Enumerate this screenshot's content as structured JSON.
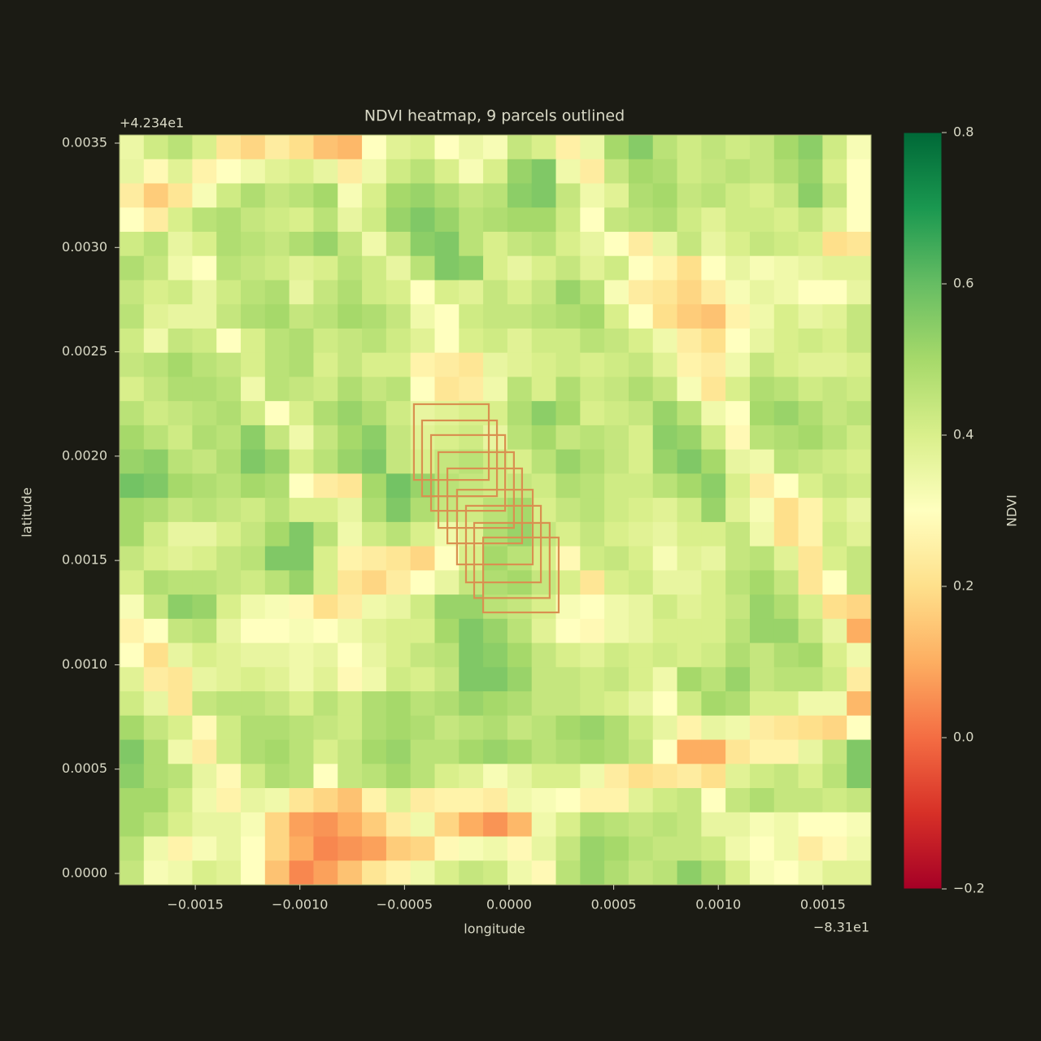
{
  "chart_data": {
    "type": "heatmap",
    "title": "NDVI heatmap, 9 parcels outlined",
    "x_label": "longitude",
    "y_label": "latitude",
    "x_offset": "−8.31e1",
    "y_offset": "+4.234e1",
    "colorbar_label": "NDVI",
    "xlim": [
      -0.001862,
      0.00173
    ],
    "ylim": [
      -5.46e-05,
      0.003539
    ],
    "xticks": [
      {
        "value": -0.0015,
        "label": "−0.0015"
      },
      {
        "value": -0.001,
        "label": "−0.0010"
      },
      {
        "value": -0.0005,
        "label": "−0.0005"
      },
      {
        "value": 0,
        "label": "0.0000"
      },
      {
        "value": 0.0005,
        "label": "0.0005"
      },
      {
        "value": 0.001,
        "label": "0.0010"
      },
      {
        "value": 0.0015,
        "label": "0.0015"
      }
    ],
    "yticks": [
      {
        "value": 0,
        "label": "0.0000"
      },
      {
        "value": 0.0005,
        "label": "0.0005"
      },
      {
        "value": 0.001,
        "label": "0.0010"
      },
      {
        "value": 0.0015,
        "label": "0.0015"
      },
      {
        "value": 0.002,
        "label": "0.0020"
      },
      {
        "value": 0.0025,
        "label": "0.0025"
      },
      {
        "value": 0.003,
        "label": "0.0030"
      },
      {
        "value": 0.0035,
        "label": "0.0035"
      }
    ],
    "clim": [
      -0.2,
      0.8
    ],
    "cticks": [
      {
        "value": -0.2,
        "label": "−0.2"
      },
      {
        "value": 0,
        "label": "0.0"
      },
      0.2,
      0.4,
      0.6,
      0.8
    ],
    "colormap": [
      "#a50026",
      "#d73027",
      "#f46d43",
      "#fdae61",
      "#fee08b",
      "#ffffbf",
      "#d9ef8b",
      "#a6d96a",
      "#66bd63",
      "#1a9850",
      "#006837"
    ],
    "parcel_color": "#d99050",
    "parcels": [
      {
        "lon": [
          -0.000455,
          -9.7e-05
        ],
        "lat": [
          0.001886,
          0.002249
        ]
      },
      {
        "lon": [
          -0.000416,
          -5.8e-05
        ],
        "lat": [
          0.001808,
          0.002171
        ]
      },
      {
        "lon": [
          -0.000373,
          -1.9e-05
        ],
        "lat": [
          0.001738,
          0.002101
        ]
      },
      {
        "lon": [
          -0.000338,
          2.3e-05
        ],
        "lat": [
          0.001656,
          0.002019
        ]
      },
      {
        "lon": [
          -0.000295,
          6.2e-05
        ],
        "lat": [
          0.001582,
          0.001941
        ]
      },
      {
        "lon": [
          -0.000249,
          0.000113
        ],
        "lat": [
          0.001481,
          0.001839
        ]
      },
      {
        "lon": [
          -0.000206,
          0.000152
        ],
        "lat": [
          0.001395,
          0.001762
        ]
      },
      {
        "lon": [
          -0.000167,
          0.000194
        ],
        "lat": [
          0.00132,
          0.00168
        ]
      },
      {
        "lon": [
          -0.000124,
          0.000237
        ],
        "lat": [
          0.001251,
          0.00161
        ]
      }
    ],
    "z": [
      [
        0.35,
        0.42,
        0.46,
        0.4,
        0.22,
        0.18,
        0.24,
        0.2,
        0.14,
        0.12,
        0.3,
        0.38,
        0.4,
        0.3,
        0.35,
        0.32,
        0.44,
        0.4,
        0.25,
        0.35,
        0.5,
        0.55,
        0.46,
        0.42,
        0.45,
        0.42,
        0.44,
        0.5,
        0.54,
        0.42,
        0.32
      ],
      [
        0.36,
        0.28,
        0.38,
        0.26,
        0.3,
        0.34,
        0.38,
        0.4,
        0.36,
        0.24,
        0.34,
        0.42,
        0.46,
        0.4,
        0.32,
        0.4,
        0.52,
        0.56,
        0.34,
        0.24,
        0.44,
        0.5,
        0.48,
        0.42,
        0.44,
        0.46,
        0.44,
        0.48,
        0.52,
        0.4,
        0.3
      ],
      [
        0.24,
        0.16,
        0.22,
        0.32,
        0.42,
        0.48,
        0.44,
        0.46,
        0.5,
        0.32,
        0.4,
        0.5,
        0.52,
        0.48,
        0.44,
        0.46,
        0.54,
        0.56,
        0.44,
        0.34,
        0.38,
        0.48,
        0.5,
        0.44,
        0.46,
        0.42,
        0.4,
        0.44,
        0.54,
        0.44,
        0.3
      ],
      [
        0.3,
        0.24,
        0.4,
        0.46,
        0.48,
        0.44,
        0.42,
        0.4,
        0.46,
        0.36,
        0.42,
        0.52,
        0.56,
        0.52,
        0.46,
        0.48,
        0.5,
        0.5,
        0.42,
        0.3,
        0.44,
        0.46,
        0.48,
        0.42,
        0.38,
        0.42,
        0.42,
        0.4,
        0.44,
        0.38,
        0.3
      ],
      [
        0.42,
        0.46,
        0.36,
        0.4,
        0.48,
        0.46,
        0.44,
        0.48,
        0.52,
        0.44,
        0.34,
        0.44,
        0.54,
        0.56,
        0.46,
        0.4,
        0.44,
        0.46,
        0.4,
        0.36,
        0.3,
        0.24,
        0.36,
        0.44,
        0.36,
        0.4,
        0.44,
        0.42,
        0.4,
        0.2,
        0.22
      ],
      [
        0.48,
        0.44,
        0.34,
        0.3,
        0.46,
        0.44,
        0.42,
        0.38,
        0.4,
        0.46,
        0.42,
        0.36,
        0.46,
        0.56,
        0.54,
        0.4,
        0.36,
        0.4,
        0.44,
        0.38,
        0.42,
        0.3,
        0.26,
        0.2,
        0.3,
        0.36,
        0.32,
        0.34,
        0.36,
        0.38,
        0.38
      ],
      [
        0.44,
        0.4,
        0.42,
        0.36,
        0.42,
        0.46,
        0.48,
        0.36,
        0.44,
        0.48,
        0.42,
        0.4,
        0.3,
        0.4,
        0.38,
        0.44,
        0.4,
        0.44,
        0.52,
        0.46,
        0.32,
        0.24,
        0.22,
        0.18,
        0.24,
        0.32,
        0.36,
        0.34,
        0.3,
        0.3,
        0.36
      ],
      [
        0.46,
        0.38,
        0.36,
        0.36,
        0.44,
        0.48,
        0.5,
        0.44,
        0.46,
        0.5,
        0.48,
        0.44,
        0.34,
        0.3,
        0.42,
        0.44,
        0.44,
        0.46,
        0.48,
        0.5,
        0.4,
        0.3,
        0.2,
        0.16,
        0.14,
        0.26,
        0.34,
        0.4,
        0.36,
        0.38,
        0.44
      ],
      [
        0.42,
        0.34,
        0.44,
        0.42,
        0.3,
        0.4,
        0.46,
        0.48,
        0.42,
        0.44,
        0.46,
        0.42,
        0.38,
        0.3,
        0.4,
        0.42,
        0.38,
        0.42,
        0.42,
        0.46,
        0.44,
        0.4,
        0.34,
        0.24,
        0.2,
        0.3,
        0.36,
        0.4,
        0.42,
        0.4,
        0.44
      ],
      [
        0.44,
        0.46,
        0.5,
        0.46,
        0.44,
        0.4,
        0.46,
        0.48,
        0.4,
        0.44,
        0.4,
        0.4,
        0.26,
        0.24,
        0.22,
        0.36,
        0.38,
        0.4,
        0.42,
        0.4,
        0.42,
        0.44,
        0.38,
        0.26,
        0.24,
        0.34,
        0.44,
        0.4,
        0.38,
        0.38,
        0.4
      ],
      [
        0.4,
        0.44,
        0.48,
        0.48,
        0.46,
        0.34,
        0.46,
        0.44,
        0.42,
        0.48,
        0.44,
        0.46,
        0.3,
        0.22,
        0.24,
        0.34,
        0.46,
        0.4,
        0.48,
        0.42,
        0.44,
        0.48,
        0.44,
        0.32,
        0.22,
        0.4,
        0.48,
        0.46,
        0.42,
        0.44,
        0.42
      ],
      [
        0.46,
        0.42,
        0.44,
        0.46,
        0.48,
        0.42,
        0.3,
        0.4,
        0.48,
        0.52,
        0.48,
        0.42,
        0.36,
        0.38,
        0.4,
        0.4,
        0.48,
        0.54,
        0.5,
        0.4,
        0.42,
        0.44,
        0.52,
        0.46,
        0.34,
        0.3,
        0.5,
        0.52,
        0.48,
        0.44,
        0.46
      ],
      [
        0.5,
        0.46,
        0.42,
        0.48,
        0.46,
        0.54,
        0.44,
        0.34,
        0.44,
        0.5,
        0.54,
        0.44,
        0.38,
        0.4,
        0.42,
        0.36,
        0.46,
        0.5,
        0.44,
        0.46,
        0.44,
        0.4,
        0.54,
        0.52,
        0.42,
        0.28,
        0.46,
        0.48,
        0.5,
        0.46,
        0.42
      ],
      [
        0.52,
        0.54,
        0.46,
        0.44,
        0.48,
        0.56,
        0.52,
        0.4,
        0.46,
        0.52,
        0.56,
        0.44,
        0.4,
        0.44,
        0.46,
        0.42,
        0.4,
        0.46,
        0.52,
        0.48,
        0.44,
        0.4,
        0.52,
        0.56,
        0.5,
        0.36,
        0.34,
        0.46,
        0.44,
        0.42,
        0.4
      ],
      [
        0.58,
        0.56,
        0.5,
        0.48,
        0.46,
        0.5,
        0.48,
        0.3,
        0.24,
        0.22,
        0.5,
        0.58,
        0.52,
        0.46,
        0.44,
        0.42,
        0.44,
        0.42,
        0.48,
        0.46,
        0.42,
        0.42,
        0.46,
        0.5,
        0.54,
        0.4,
        0.24,
        0.3,
        0.4,
        0.44,
        0.42
      ],
      [
        0.5,
        0.48,
        0.44,
        0.46,
        0.44,
        0.42,
        0.46,
        0.4,
        0.4,
        0.36,
        0.48,
        0.56,
        0.48,
        0.44,
        0.42,
        0.46,
        0.5,
        0.4,
        0.44,
        0.46,
        0.42,
        0.4,
        0.38,
        0.42,
        0.52,
        0.38,
        0.32,
        0.2,
        0.26,
        0.4,
        0.36
      ],
      [
        0.5,
        0.42,
        0.36,
        0.36,
        0.4,
        0.44,
        0.5,
        0.56,
        0.46,
        0.34,
        0.42,
        0.46,
        0.4,
        0.34,
        0.38,
        0.48,
        0.52,
        0.44,
        0.4,
        0.44,
        0.4,
        0.38,
        0.36,
        0.4,
        0.4,
        0.44,
        0.34,
        0.2,
        0.26,
        0.42,
        0.38
      ],
      [
        0.44,
        0.4,
        0.38,
        0.4,
        0.44,
        0.46,
        0.56,
        0.56,
        0.4,
        0.26,
        0.24,
        0.22,
        0.18,
        0.3,
        0.4,
        0.5,
        0.46,
        0.4,
        0.28,
        0.42,
        0.44,
        0.4,
        0.32,
        0.38,
        0.36,
        0.44,
        0.46,
        0.38,
        0.22,
        0.4,
        0.44
      ],
      [
        0.4,
        0.48,
        0.46,
        0.46,
        0.44,
        0.42,
        0.46,
        0.52,
        0.4,
        0.22,
        0.18,
        0.24,
        0.3,
        0.36,
        0.44,
        0.48,
        0.5,
        0.44,
        0.4,
        0.22,
        0.4,
        0.42,
        0.36,
        0.36,
        0.4,
        0.46,
        0.5,
        0.44,
        0.22,
        0.3,
        0.44
      ],
      [
        0.32,
        0.44,
        0.54,
        0.52,
        0.4,
        0.34,
        0.32,
        0.28,
        0.2,
        0.24,
        0.34,
        0.36,
        0.42,
        0.52,
        0.52,
        0.46,
        0.44,
        0.4,
        0.32,
        0.3,
        0.34,
        0.36,
        0.42,
        0.38,
        0.4,
        0.44,
        0.52,
        0.48,
        0.4,
        0.2,
        0.18
      ],
      [
        0.26,
        0.3,
        0.44,
        0.46,
        0.36,
        0.3,
        0.3,
        0.32,
        0.3,
        0.34,
        0.38,
        0.4,
        0.4,
        0.5,
        0.56,
        0.52,
        0.46,
        0.38,
        0.3,
        0.28,
        0.34,
        0.36,
        0.4,
        0.4,
        0.4,
        0.46,
        0.52,
        0.52,
        0.44,
        0.36,
        0.1
      ],
      [
        0.3,
        0.2,
        0.36,
        0.4,
        0.38,
        0.36,
        0.36,
        0.34,
        0.36,
        0.3,
        0.36,
        0.4,
        0.44,
        0.46,
        0.56,
        0.54,
        0.5,
        0.44,
        0.4,
        0.38,
        0.42,
        0.4,
        0.42,
        0.4,
        0.42,
        0.48,
        0.44,
        0.48,
        0.5,
        0.4,
        0.34
      ],
      [
        0.38,
        0.24,
        0.22,
        0.36,
        0.38,
        0.4,
        0.38,
        0.34,
        0.38,
        0.28,
        0.34,
        0.42,
        0.4,
        0.44,
        0.56,
        0.56,
        0.52,
        0.44,
        0.44,
        0.42,
        0.44,
        0.4,
        0.34,
        0.5,
        0.46,
        0.52,
        0.44,
        0.46,
        0.46,
        0.42,
        0.24
      ],
      [
        0.42,
        0.36,
        0.22,
        0.44,
        0.46,
        0.46,
        0.44,
        0.4,
        0.46,
        0.42,
        0.48,
        0.5,
        0.46,
        0.48,
        0.52,
        0.5,
        0.48,
        0.44,
        0.44,
        0.42,
        0.4,
        0.36,
        0.3,
        0.42,
        0.5,
        0.48,
        0.4,
        0.4,
        0.34,
        0.34,
        0.12
      ],
      [
        0.5,
        0.44,
        0.4,
        0.28,
        0.42,
        0.48,
        0.48,
        0.46,
        0.44,
        0.42,
        0.48,
        0.5,
        0.48,
        0.44,
        0.46,
        0.48,
        0.44,
        0.46,
        0.5,
        0.52,
        0.48,
        0.42,
        0.36,
        0.26,
        0.36,
        0.34,
        0.24,
        0.22,
        0.2,
        0.18,
        0.3
      ],
      [
        0.56,
        0.48,
        0.34,
        0.24,
        0.42,
        0.48,
        0.5,
        0.46,
        0.4,
        0.44,
        0.5,
        0.52,
        0.46,
        0.46,
        0.5,
        0.52,
        0.5,
        0.46,
        0.48,
        0.5,
        0.48,
        0.44,
        0.3,
        0.1,
        0.1,
        0.22,
        0.26,
        0.26,
        0.36,
        0.44,
        0.56
      ],
      [
        0.54,
        0.48,
        0.46,
        0.36,
        0.28,
        0.42,
        0.48,
        0.46,
        0.3,
        0.44,
        0.46,
        0.5,
        0.46,
        0.4,
        0.38,
        0.32,
        0.36,
        0.4,
        0.4,
        0.34,
        0.24,
        0.2,
        0.22,
        0.24,
        0.2,
        0.38,
        0.42,
        0.44,
        0.4,
        0.46,
        0.56
      ],
      [
        0.5,
        0.5,
        0.42,
        0.34,
        0.26,
        0.36,
        0.34,
        0.22,
        0.18,
        0.14,
        0.26,
        0.38,
        0.24,
        0.26,
        0.26,
        0.24,
        0.34,
        0.32,
        0.3,
        0.26,
        0.26,
        0.38,
        0.42,
        0.44,
        0.3,
        0.44,
        0.48,
        0.44,
        0.44,
        0.42,
        0.44
      ],
      [
        0.5,
        0.46,
        0.4,
        0.36,
        0.36,
        0.32,
        0.18,
        0.08,
        0.06,
        0.1,
        0.16,
        0.24,
        0.34,
        0.18,
        0.1,
        0.06,
        0.12,
        0.34,
        0.4,
        0.48,
        0.46,
        0.44,
        0.46,
        0.44,
        0.36,
        0.36,
        0.32,
        0.34,
        0.3,
        0.3,
        0.32
      ],
      [
        0.46,
        0.34,
        0.26,
        0.32,
        0.36,
        0.3,
        0.18,
        0.1,
        0.04,
        0.06,
        0.08,
        0.16,
        0.18,
        0.28,
        0.32,
        0.34,
        0.28,
        0.36,
        0.44,
        0.52,
        0.5,
        0.46,
        0.44,
        0.44,
        0.42,
        0.34,
        0.3,
        0.34,
        0.24,
        0.28,
        0.34
      ],
      [
        0.44,
        0.32,
        0.34,
        0.4,
        0.38,
        0.3,
        0.14,
        0.04,
        0.08,
        0.14,
        0.22,
        0.26,
        0.34,
        0.4,
        0.44,
        0.42,
        0.34,
        0.28,
        0.46,
        0.52,
        0.48,
        0.44,
        0.46,
        0.54,
        0.48,
        0.4,
        0.32,
        0.3,
        0.34,
        0.38,
        0.38
      ]
    ]
  }
}
